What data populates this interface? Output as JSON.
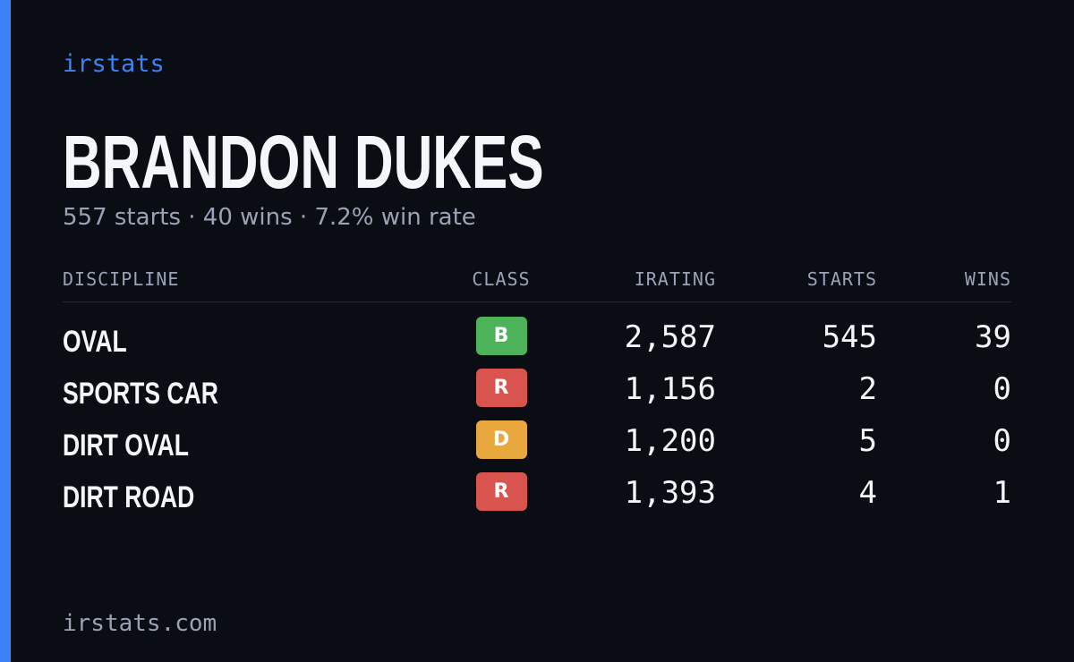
{
  "header": {
    "brand": "irstats",
    "title": "BRANDON DUKES",
    "subtitle": "557 starts · 40 wins · 7.2% win rate"
  },
  "table": {
    "columns": [
      "DISCIPLINE",
      "CLASS",
      "IRATING",
      "STARTS",
      "WINS"
    ],
    "rows": [
      {
        "discipline": "OVAL",
        "class": "B",
        "class_color": "#4cb35a",
        "irating": "2,587",
        "starts": "545",
        "wins": "39"
      },
      {
        "discipline": "SPORTS CAR",
        "class": "R",
        "class_color": "#d9534f",
        "irating": "1,156",
        "starts": "2",
        "wins": "0"
      },
      {
        "discipline": "DIRT OVAL",
        "class": "D",
        "class_color": "#e8a83e",
        "irating": "1,200",
        "starts": "5",
        "wins": "0"
      },
      {
        "discipline": "DIRT ROAD",
        "class": "R",
        "class_color": "#d9534f",
        "irating": "1,393",
        "starts": "4",
        "wins": "1"
      }
    ]
  },
  "footer": {
    "url": "irstats.com"
  }
}
